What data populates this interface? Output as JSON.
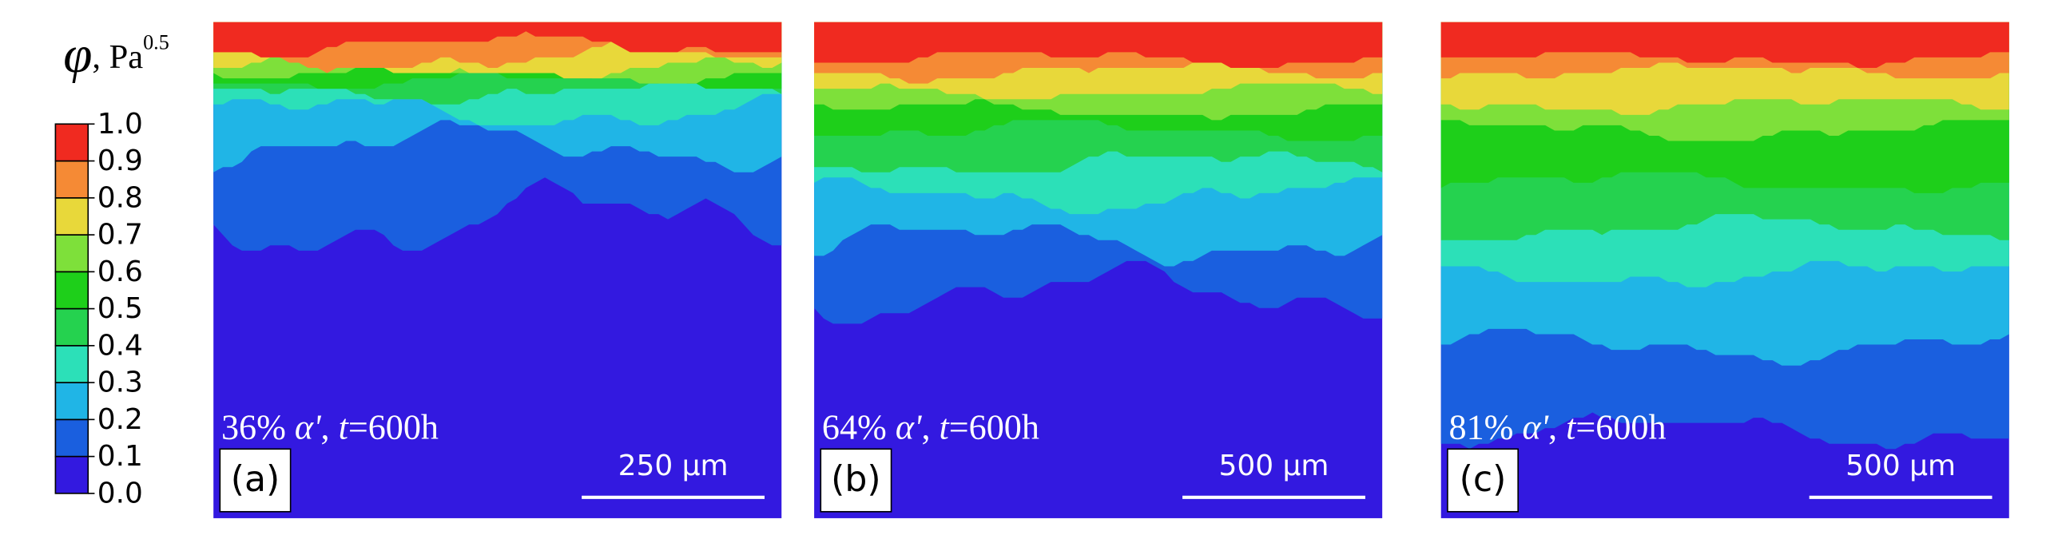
{
  "legend": {
    "symbol": "φ",
    "unit": ", Pa",
    "exponent": "0.5",
    "range": [
      0,
      1
    ],
    "ticks": [
      {
        "value": 1,
        "label": "1.0"
      },
      0.9,
      0.8,
      0.7,
      0.6,
      0.5,
      0.4,
      0.3,
      0.2,
      0.1,
      {
        "value": 0,
        "label": "0.0"
      }
    ],
    "colors": [
      "#3319e0",
      "#1a5fdf",
      "#20b5e6",
      "#2ce0b8",
      "#25d24f",
      "#1ecf1a",
      "#7ee03a",
      "#e8d83a",
      "#f58a35",
      "#f02a20"
    ]
  },
  "panels": [
    {
      "label": "(a)",
      "caption": [
        {
          "text": "36% ",
          "italic": false
        },
        {
          "text": "α'",
          "italic": true
        },
        {
          "text": ", ",
          "italic": false
        },
        {
          "text": "t",
          "italic": true
        },
        {
          "text": "=600h",
          "italic": false
        }
      ],
      "scale_bar": "250 μm"
    },
    {
      "label": "(b)",
      "caption": [
        {
          "text": "64% ",
          "italic": false
        },
        {
          "text": "α'",
          "italic": true
        },
        {
          "text": ", ",
          "italic": false
        },
        {
          "text": "t",
          "italic": true
        },
        {
          "text": "=600h",
          "italic": false
        }
      ],
      "scale_bar": "500 μm"
    },
    {
      "label": "(c)",
      "caption": [
        {
          "text": "81% ",
          "italic": false
        },
        {
          "text": "α'",
          "italic": true
        },
        {
          "text": ", ",
          "italic": false
        },
        {
          "text": "t",
          "italic": true
        },
        {
          "text": "=600h",
          "italic": false
        }
      ],
      "scale_bar": "500 μm"
    }
  ]
}
